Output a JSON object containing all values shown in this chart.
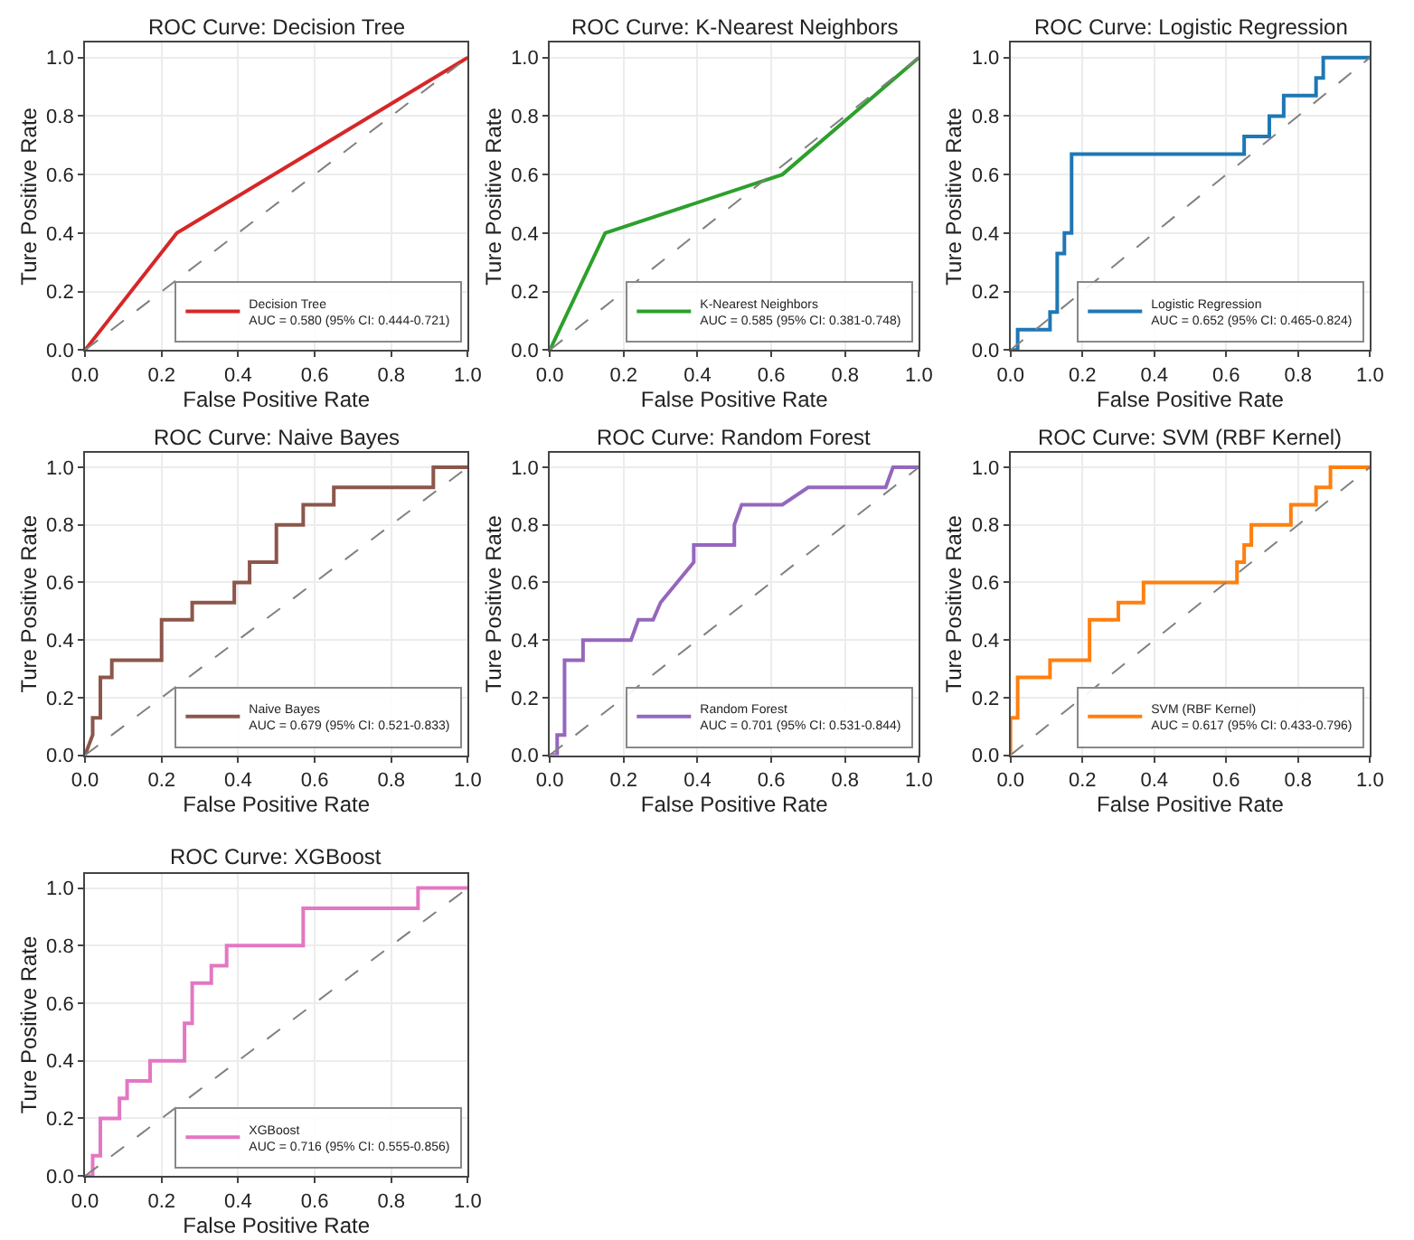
{
  "chart_data": [
    {
      "type": "line",
      "title": "ROC Curve: Decision Tree",
      "xlabel": "False Positive Rate",
      "ylabel": "Ture Positive Rate",
      "xlim": [
        0,
        1
      ],
      "ylim": [
        0,
        1.05
      ],
      "xticks": [
        {
          "value": 0,
          "label": "0.0"
        },
        {
          "value": 0.2,
          "label": "0.2"
        },
        {
          "value": 0.4,
          "label": "0.4"
        },
        {
          "value": 0.6,
          "label": "0.6"
        },
        {
          "value": 0.8,
          "label": "0.8"
        },
        {
          "value": 1,
          "label": "1.0"
        }
      ],
      "yticks": [
        {
          "value": 0,
          "label": "0.0"
        },
        {
          "value": 0.2,
          "label": "0.2"
        },
        {
          "value": 0.4,
          "label": "0.4"
        },
        {
          "value": 0.6,
          "label": "0.6"
        },
        {
          "value": 0.8,
          "label": "0.8"
        },
        {
          "value": 1,
          "label": "1.0"
        }
      ],
      "grid": true,
      "legend": "bottom right",
      "series": [
        {
          "name": "Decision Tree\nAUC = 0.580 (95% CI: 0.444-0.721)",
          "color": "#d62728",
          "line_style": "solid",
          "x": [
            0,
            0.24,
            1
          ],
          "values": [
            0,
            0.4,
            1
          ]
        },
        {
          "color": "#808080",
          "line_style": "dashed",
          "x": [
            0,
            1
          ],
          "values": [
            0,
            1
          ]
        }
      ]
    },
    {
      "type": "line",
      "title": "ROC Curve: K-Nearest Neighbors",
      "xlabel": "False Positive Rate",
      "ylabel": "Ture Positive Rate",
      "xlim": [
        0,
        1
      ],
      "ylim": [
        0,
        1.05
      ],
      "xticks": [
        {
          "value": 0,
          "label": "0.0"
        },
        {
          "value": 0.2,
          "label": "0.2"
        },
        {
          "value": 0.4,
          "label": "0.4"
        },
        {
          "value": 0.6,
          "label": "0.6"
        },
        {
          "value": 0.8,
          "label": "0.8"
        },
        {
          "value": 1,
          "label": "1.0"
        }
      ],
      "yticks": [
        {
          "value": 0,
          "label": "0.0"
        },
        {
          "value": 0.2,
          "label": "0.2"
        },
        {
          "value": 0.4,
          "label": "0.4"
        },
        {
          "value": 0.6,
          "label": "0.6"
        },
        {
          "value": 0.8,
          "label": "0.8"
        },
        {
          "value": 1,
          "label": "1.0"
        }
      ],
      "grid": true,
      "legend": "bottom right",
      "series": [
        {
          "name": "K-Nearest Neighbors\nAUC = 0.585 (95% CI: 0.381-0.748)",
          "color": "#2ca02c",
          "line_style": "solid",
          "x": [
            0,
            0.15,
            0.63,
            1
          ],
          "values": [
            0,
            0.4,
            0.6,
            1
          ]
        },
        {
          "color": "#808080",
          "line_style": "dashed",
          "x": [
            0,
            1
          ],
          "values": [
            0,
            1
          ]
        }
      ]
    },
    {
      "type": "line",
      "title": "ROC Curve: Logistic Regression",
      "xlabel": "False Positive Rate",
      "ylabel": "Ture Positive Rate",
      "xlim": [
        0,
        1
      ],
      "ylim": [
        0,
        1.05
      ],
      "xticks": [
        {
          "value": 0,
          "label": "0.0"
        },
        {
          "value": 0.2,
          "label": "0.2"
        },
        {
          "value": 0.4,
          "label": "0.4"
        },
        {
          "value": 0.6,
          "label": "0.6"
        },
        {
          "value": 0.8,
          "label": "0.8"
        },
        {
          "value": 1,
          "label": "1.0"
        }
      ],
      "yticks": [
        {
          "value": 0,
          "label": "0.0"
        },
        {
          "value": 0.2,
          "label": "0.2"
        },
        {
          "value": 0.4,
          "label": "0.4"
        },
        {
          "value": 0.6,
          "label": "0.6"
        },
        {
          "value": 0.8,
          "label": "0.8"
        },
        {
          "value": 1,
          "label": "1.0"
        }
      ],
      "grid": true,
      "legend": "bottom right",
      "series": [
        {
          "name": "Logistic Regression\nAUC = 0.652 (95% CI: 0.465-0.824)",
          "color": "#1f77b4",
          "line_style": "solid",
          "x": [
            0,
            0.02,
            0.02,
            0.11,
            0.11,
            0.13,
            0.13,
            0.15,
            0.15,
            0.17,
            0.17,
            0.65,
            0.65,
            0.72,
            0.72,
            0.76,
            0.76,
            0.85,
            0.85,
            0.87,
            0.87,
            1
          ],
          "values": [
            0,
            0,
            0.07,
            0.07,
            0.13,
            0.13,
            0.33,
            0.33,
            0.4,
            0.4,
            0.67,
            0.67,
            0.73,
            0.73,
            0.8,
            0.8,
            0.87,
            0.87,
            0.93,
            0.93,
            1,
            1
          ]
        },
        {
          "color": "#808080",
          "line_style": "dashed",
          "x": [
            0,
            1
          ],
          "values": [
            0,
            1
          ]
        }
      ]
    },
    {
      "type": "line",
      "title": "ROC Curve: Naive Bayes",
      "xlabel": "False Positive Rate",
      "ylabel": "Ture Positive Rate",
      "xlim": [
        0,
        1
      ],
      "ylim": [
        0,
        1.05
      ],
      "xticks": [
        {
          "value": 0,
          "label": "0.0"
        },
        {
          "value": 0.2,
          "label": "0.2"
        },
        {
          "value": 0.4,
          "label": "0.4"
        },
        {
          "value": 0.6,
          "label": "0.6"
        },
        {
          "value": 0.8,
          "label": "0.8"
        },
        {
          "value": 1,
          "label": "1.0"
        }
      ],
      "yticks": [
        {
          "value": 0,
          "label": "0.0"
        },
        {
          "value": 0.2,
          "label": "0.2"
        },
        {
          "value": 0.4,
          "label": "0.4"
        },
        {
          "value": 0.6,
          "label": "0.6"
        },
        {
          "value": 0.8,
          "label": "0.8"
        },
        {
          "value": 1,
          "label": "1.0"
        }
      ],
      "grid": true,
      "legend": "bottom right",
      "series": [
        {
          "name": "Naive Bayes\nAUC = 0.679 (95% CI: 0.521-0.833)",
          "color": "#8c564b",
          "line_style": "solid",
          "x": [
            0,
            0.02,
            0.02,
            0.04,
            0.04,
            0.07,
            0.07,
            0.2,
            0.2,
            0.28,
            0.28,
            0.39,
            0.39,
            0.43,
            0.43,
            0.5,
            0.5,
            0.57,
            0.57,
            0.65,
            0.65,
            0.91,
            0.91,
            1
          ],
          "values": [
            0,
            0.07,
            0.13,
            0.13,
            0.27,
            0.27,
            0.33,
            0.33,
            0.47,
            0.47,
            0.53,
            0.53,
            0.6,
            0.6,
            0.67,
            0.67,
            0.8,
            0.8,
            0.87,
            0.87,
            0.93,
            0.93,
            1,
            1
          ]
        },
        {
          "color": "#808080",
          "line_style": "dashed",
          "x": [
            0,
            1
          ],
          "values": [
            0,
            1
          ]
        }
      ]
    },
    {
      "type": "line",
      "title": "ROC Curve: Random Forest",
      "xlabel": "False Positive Rate",
      "ylabel": "Ture Positive Rate",
      "xlim": [
        0,
        1
      ],
      "ylim": [
        0,
        1.05
      ],
      "xticks": [
        {
          "value": 0,
          "label": "0.0"
        },
        {
          "value": 0.2,
          "label": "0.2"
        },
        {
          "value": 0.4,
          "label": "0.4"
        },
        {
          "value": 0.6,
          "label": "0.6"
        },
        {
          "value": 0.8,
          "label": "0.8"
        },
        {
          "value": 1,
          "label": "1.0"
        }
      ],
      "yticks": [
        {
          "value": 0,
          "label": "0.0"
        },
        {
          "value": 0.2,
          "label": "0.2"
        },
        {
          "value": 0.4,
          "label": "0.4"
        },
        {
          "value": 0.6,
          "label": "0.6"
        },
        {
          "value": 0.8,
          "label": "0.8"
        },
        {
          "value": 1,
          "label": "1.0"
        }
      ],
      "grid": true,
      "legend": "bottom right",
      "series": [
        {
          "name": "Random Forest\nAUC = 0.701 (95% CI: 0.531-0.844)",
          "color": "#9467bd",
          "line_style": "solid",
          "x": [
            0,
            0.02,
            0.02,
            0.04,
            0.04,
            0.09,
            0.09,
            0.22,
            0.24,
            0.28,
            0.3,
            0.39,
            0.39,
            0.5,
            0.5,
            0.52,
            0.63,
            0.7,
            0.91,
            0.93,
            1
          ],
          "values": [
            0,
            0,
            0.07,
            0.07,
            0.33,
            0.33,
            0.4,
            0.4,
            0.47,
            0.47,
            0.53,
            0.67,
            0.73,
            0.73,
            0.8,
            0.87,
            0.87,
            0.93,
            0.93,
            1,
            1
          ]
        },
        {
          "color": "#808080",
          "line_style": "dashed",
          "x": [
            0,
            1
          ],
          "values": [
            0,
            1
          ]
        }
      ]
    },
    {
      "type": "line",
      "title": "ROC Curve: SVM (RBF Kernel)",
      "xlabel": "False Positive Rate",
      "ylabel": "Ture Positive Rate",
      "xlim": [
        0,
        1
      ],
      "ylim": [
        0,
        1.05
      ],
      "xticks": [
        {
          "value": 0,
          "label": "0.0"
        },
        {
          "value": 0.2,
          "label": "0.2"
        },
        {
          "value": 0.4,
          "label": "0.4"
        },
        {
          "value": 0.6,
          "label": "0.6"
        },
        {
          "value": 0.8,
          "label": "0.8"
        },
        {
          "value": 1,
          "label": "1.0"
        }
      ],
      "yticks": [
        {
          "value": 0,
          "label": "0.0"
        },
        {
          "value": 0.2,
          "label": "0.2"
        },
        {
          "value": 0.4,
          "label": "0.4"
        },
        {
          "value": 0.6,
          "label": "0.6"
        },
        {
          "value": 0.8,
          "label": "0.8"
        },
        {
          "value": 1,
          "label": "1.0"
        }
      ],
      "grid": true,
      "legend": "bottom right",
      "series": [
        {
          "name": "SVM (RBF Kernel)\nAUC = 0.617 (95% CI: 0.433-0.796)",
          "color": "#ff7f0e",
          "line_style": "solid",
          "x": [
            0,
            0,
            0.02,
            0.02,
            0.11,
            0.11,
            0.22,
            0.22,
            0.3,
            0.3,
            0.37,
            0.37,
            0.63,
            0.63,
            0.65,
            0.65,
            0.67,
            0.67,
            0.78,
            0.78,
            0.85,
            0.85,
            0.89,
            0.89,
            1
          ],
          "values": [
            0,
            0.13,
            0.13,
            0.27,
            0.27,
            0.33,
            0.33,
            0.47,
            0.47,
            0.53,
            0.53,
            0.6,
            0.6,
            0.67,
            0.67,
            0.73,
            0.73,
            0.8,
            0.8,
            0.87,
            0.87,
            0.93,
            0.93,
            1,
            1
          ]
        },
        {
          "color": "#808080",
          "line_style": "dashed",
          "x": [
            0,
            1
          ],
          "values": [
            0,
            1
          ]
        }
      ]
    },
    {
      "type": "line",
      "title": "ROC Curve: XGBoost",
      "xlabel": "False Positive Rate",
      "ylabel": "Ture Positive Rate",
      "xlim": [
        0,
        1
      ],
      "ylim": [
        0,
        1.05
      ],
      "xticks": [
        {
          "value": 0,
          "label": "0.0"
        },
        {
          "value": 0.2,
          "label": "0.2"
        },
        {
          "value": 0.4,
          "label": "0.4"
        },
        {
          "value": 0.6,
          "label": "0.6"
        },
        {
          "value": 0.8,
          "label": "0.8"
        },
        {
          "value": 1,
          "label": "1.0"
        }
      ],
      "yticks": [
        {
          "value": 0,
          "label": "0.0"
        },
        {
          "value": 0.2,
          "label": "0.2"
        },
        {
          "value": 0.4,
          "label": "0.4"
        },
        {
          "value": 0.6,
          "label": "0.6"
        },
        {
          "value": 0.8,
          "label": "0.8"
        },
        {
          "value": 1,
          "label": "1.0"
        }
      ],
      "grid": true,
      "legend": "bottom right",
      "series": [
        {
          "name": "XGBoost\nAUC = 0.716 (95% CI: 0.555-0.856)",
          "color": "#e377c2",
          "line_style": "solid",
          "x": [
            0,
            0.02,
            0.02,
            0.04,
            0.04,
            0.09,
            0.09,
            0.11,
            0.11,
            0.17,
            0.17,
            0.26,
            0.26,
            0.28,
            0.28,
            0.33,
            0.33,
            0.37,
            0.37,
            0.57,
            0.57,
            0.87,
            0.87,
            1
          ],
          "values": [
            0,
            0,
            0.07,
            0.07,
            0.2,
            0.2,
            0.27,
            0.27,
            0.33,
            0.33,
            0.4,
            0.4,
            0.53,
            0.53,
            0.67,
            0.67,
            0.73,
            0.73,
            0.8,
            0.8,
            0.93,
            0.93,
            1,
            1
          ]
        },
        {
          "color": "#808080",
          "line_style": "dashed",
          "x": [
            0,
            1
          ],
          "values": [
            0,
            1
          ]
        }
      ]
    }
  ]
}
